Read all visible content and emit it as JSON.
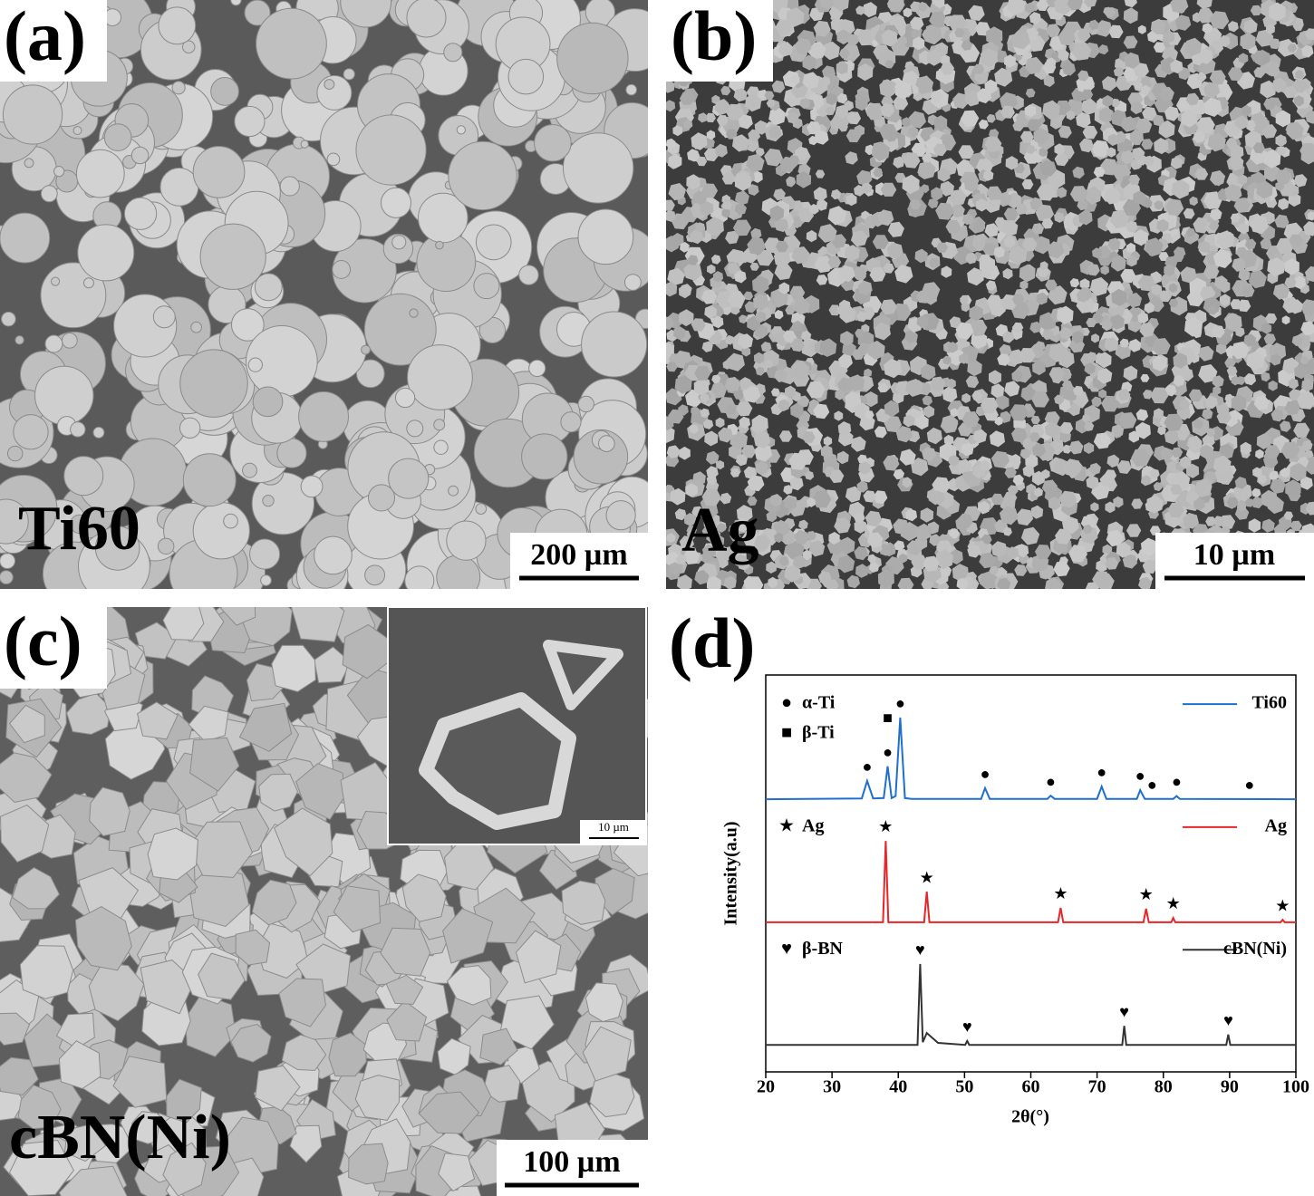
{
  "panels": [
    {
      "label": "(a)",
      "material": "Ti60",
      "scale_bar": "200 µm"
    },
    {
      "label": "(b)",
      "material": "Ag",
      "scale_bar": "10 µm"
    },
    {
      "label": "(c)",
      "material": "cBN(Ni)",
      "scale_bar": "100 µm",
      "inset_scale_bar": "10 µm"
    }
  ],
  "chart_data": {
    "type": "line",
    "label": "(d)",
    "xlabel": "2θ(°)",
    "ylabel": "Intensity(a.u)",
    "xlim": [
      20,
      100
    ],
    "xticks": [
      20,
      30,
      40,
      50,
      60,
      70,
      80,
      90,
      100
    ],
    "ylim": [
      0,
      100
    ],
    "series": [
      {
        "name": "Ti60",
        "color": "#1f6fd1",
        "x": [
          20,
          34.5,
          35.3,
          36.2,
          37.8,
          38.4,
          39,
          39.6,
          40.3,
          41,
          42,
          52.5,
          53.1,
          53.8,
          62.5,
          63,
          63.6,
          70,
          70.7,
          71.4,
          76,
          76.5,
          77.2,
          81.5,
          82,
          82.5,
          100
        ],
        "values": [
          68.7,
          68.9,
          73.3,
          68.9,
          69,
          77,
          69,
          69.5,
          89.3,
          69,
          68.8,
          68.8,
          71.5,
          68.8,
          68.8,
          69.6,
          68.8,
          68.8,
          71.9,
          68.8,
          68.8,
          71,
          68.8,
          68.8,
          69.5,
          68.8,
          68.7
        ],
        "phases": [
          {
            "symbol": "●",
            "name": "α-Ti",
            "peaks": [
              35.3,
              38.4,
              40.3,
              53.1,
              63,
              70.7,
              76.5,
              78.3,
              82,
              93
            ]
          },
          {
            "symbol": "■",
            "name": "β-Ti",
            "peaks": [
              38.4
            ]
          }
        ]
      },
      {
        "name": "Ag",
        "color": "#e8262a",
        "x": [
          20,
          37.7,
          38.1,
          38.5,
          43.9,
          44.3,
          44.7,
          64.1,
          64.5,
          64.9,
          77,
          77.4,
          77.8,
          81.2,
          81.5,
          81.8,
          97.7,
          98,
          98.3,
          100
        ],
        "values": [
          37.7,
          37.7,
          58.2,
          37.7,
          37.7,
          45.4,
          37.7,
          37.7,
          41.3,
          37.7,
          37.7,
          41.1,
          37.7,
          37.7,
          38.8,
          37.7,
          37.7,
          38.3,
          37.7,
          37.7
        ],
        "phases": [
          {
            "symbol": "★",
            "name": "Ag",
            "peaks": [
              38.1,
              44.3,
              64.5,
              77.4,
              81.5,
              98
            ]
          }
        ]
      },
      {
        "name": "cBN(Ni)",
        "color": "#333333",
        "x": [
          20,
          42.9,
          43.3,
          43.7,
          44.3,
          46,
          50.1,
          50.4,
          50.7,
          73.8,
          74.1,
          74.4,
          89.5,
          89.8,
          90.1,
          100
        ],
        "values": [
          6.8,
          6.8,
          27.2,
          7.5,
          9.8,
          7.3,
          6.8,
          7.8,
          6.8,
          6.8,
          11.6,
          6.8,
          6.8,
          9.4,
          6.8,
          6.8
        ],
        "phases": [
          {
            "symbol": "♥",
            "name": "β-BN",
            "peaks": [
              43.3,
              50.4,
              74.1,
              89.8
            ]
          }
        ]
      }
    ]
  }
}
